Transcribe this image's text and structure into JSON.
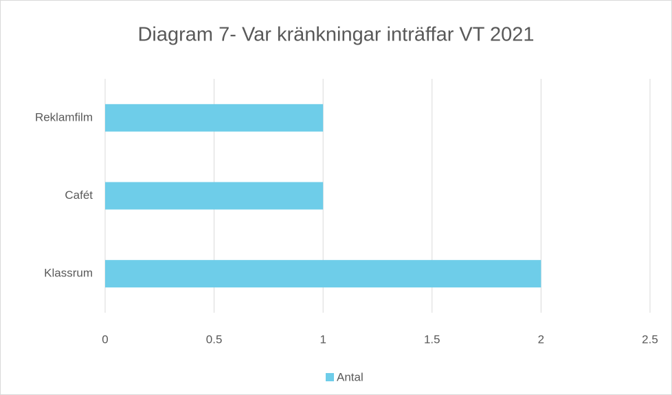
{
  "chart_data": {
    "type": "hbar",
    "title": "Diagram 7- Var kränkningar inträffar VT 2021",
    "categories": [
      "Klassrum",
      "Cafét",
      "Reklamfilm"
    ],
    "series": [
      {
        "name": "Antal",
        "color": "#6ecde9",
        "values": [
          2,
          1,
          1
        ]
      }
    ],
    "xlim": [
      0,
      2.5
    ],
    "xticks": [
      0,
      0.5,
      1,
      1.5,
      2,
      2.5
    ],
    "grid": true,
    "legend": "bottom"
  }
}
